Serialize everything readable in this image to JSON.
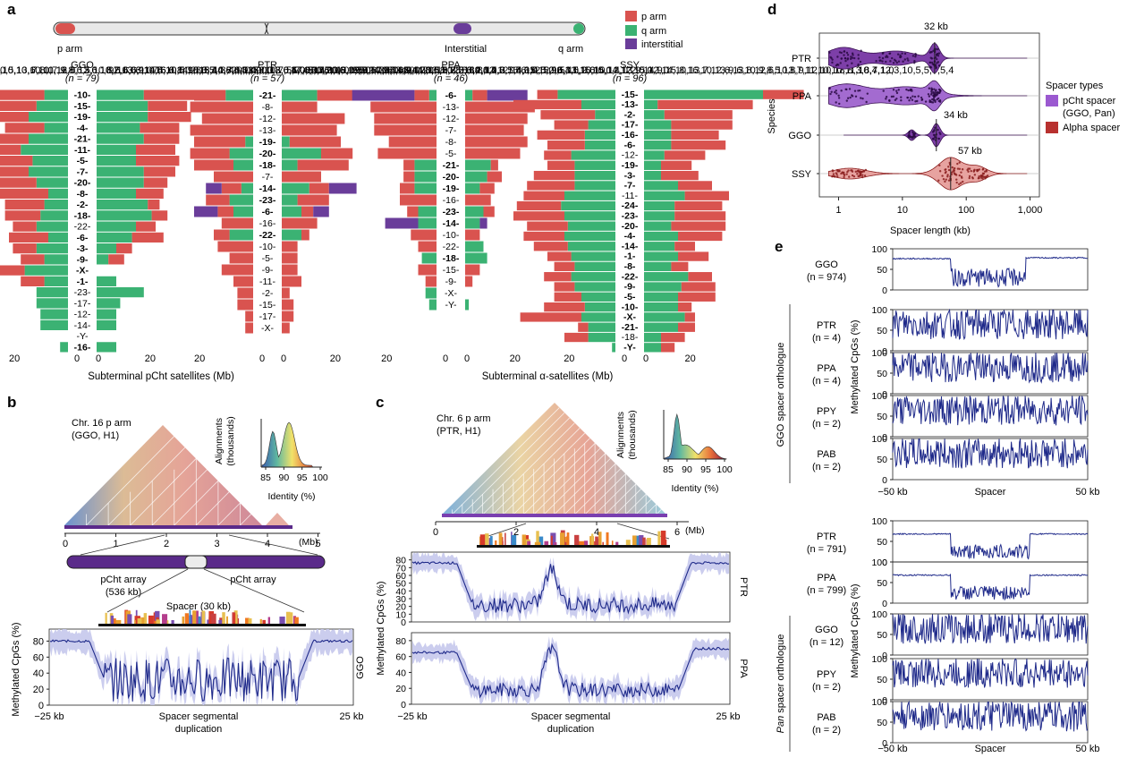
{
  "panels": {
    "a": {
      "letter": "a",
      "chrom_labels": {
        "p": "p arm",
        "interstitial": "Interstitial",
        "q": "q arm"
      },
      "legend": [
        {
          "label": "p arm",
          "color": "#d9534f"
        },
        {
          "label": "q arm",
          "color": "#3bb273"
        },
        {
          "label": "interstitial",
          "color": "#6a3d9a"
        }
      ],
      "x_axis_left": "Subterminal pCht satellites (Mb)",
      "x_axis_right": "Subterminal α-satellites (Mb)",
      "tick_labels": [
        "20",
        "0",
        "20"
      ],
      "species": [
        {
          "name": "GGO",
          "n": "(n = 79)",
          "h1": [
            [
              6,
              14
            ],
            [
              8,
              12
            ],
            [
              10,
              8
            ],
            [
              6,
              10
            ],
            [
              10,
              8
            ],
            [
              12,
              6
            ],
            [
              9,
              9
            ],
            [
              10,
              8
            ],
            [
              8,
              10
            ],
            [
              5,
              13
            ],
            [
              6,
              10
            ],
            [
              7,
              9
            ],
            [
              8,
              6
            ],
            [
              5,
              10
            ],
            [
              8,
              6
            ],
            [
              6,
              6
            ],
            [
              11,
              7
            ],
            [
              6,
              6
            ],
            [
              8,
              0
            ],
            [
              8,
              0
            ],
            [
              7,
              0
            ],
            [
              7,
              0
            ],
            [
              0,
              0
            ],
            [
              2,
              0
            ]
          ],
          "h2": [
            [
              12,
              14
            ],
            [
              13,
              10
            ],
            [
              13,
              11
            ],
            [
              11,
              10
            ],
            [
              12,
              9
            ],
            [
              10,
              10
            ],
            [
              10,
              11
            ],
            [
              12,
              8
            ],
            [
              12,
              6
            ],
            [
              10,
              7
            ],
            [
              13,
              3
            ],
            [
              14,
              4
            ],
            [
              10,
              5
            ],
            [
              9,
              8
            ],
            [
              5,
              4
            ],
            [
              3,
              4
            ],
            [
              0,
              0
            ],
            [
              5,
              0
            ],
            [
              12,
              0
            ],
            [
              6,
              0
            ],
            [
              5,
              0
            ],
            [
              5,
              0
            ],
            [
              0,
              0
            ],
            [
              5,
              0
            ]
          ],
          "chroms": [
            "10",
            "15",
            "19",
            "4",
            "21",
            "11",
            "5",
            "7",
            "20",
            "8",
            "2",
            "18",
            "22",
            "6",
            "3",
            "9",
            "X",
            "1",
            "23",
            "17",
            "12",
            "14",
            "Y",
            "16"
          ],
          "bold": [
            1,
            1,
            1,
            1,
            1,
            1,
            1,
            1,
            1,
            1,
            1,
            1,
            0,
            1,
            1,
            1,
            1,
            1,
            0,
            0,
            0,
            0,
            0,
            1
          ]
        },
        {
          "name": "PTR",
          "n": "(n = 57)",
          "h1": [
            [
              7,
              8
            ],
            [
              0,
              16
            ],
            [
              0,
              13
            ],
            [
              0,
              16
            ],
            [
              2,
              13
            ],
            [
              6,
              10
            ],
            [
              5,
              10
            ],
            [
              0,
              10
            ],
            [
              3,
              5,
              4
            ],
            [
              6,
              6
            ],
            [
              5,
              4,
              6
            ],
            [
              0,
              8
            ],
            [
              6,
              4
            ],
            [
              0,
              9
            ],
            [
              0,
              6
            ],
            [
              0,
              8
            ],
            [
              0,
              5
            ],
            [
              0,
              4
            ],
            [
              0,
              4
            ],
            [
              0,
              2
            ],
            [
              0,
              2
            ]
          ],
          "h2": [
            [
              9,
              10
            ],
            [
              0,
              9
            ],
            [
              0,
              16
            ],
            [
              0,
              14
            ],
            [
              2,
              13
            ],
            [
              10,
              8
            ],
            [
              4,
              13
            ],
            [
              0,
              10
            ],
            [
              7,
              5,
              7
            ],
            [
              4,
              8
            ],
            [
              5,
              3,
              4
            ],
            [
              0,
              9
            ],
            [
              5,
              2
            ],
            [
              0,
              4
            ],
            [
              0,
              4
            ],
            [
              0,
              4
            ],
            [
              0,
              5
            ],
            [
              0,
              2
            ],
            [
              0,
              3
            ],
            [
              0,
              3
            ],
            [
              0,
              2
            ]
          ],
          "chroms": [
            "21",
            "8",
            "12",
            "13",
            "19",
            "20",
            "18",
            "7",
            "14",
            "23",
            "6",
            "16",
            "22",
            "10",
            "5",
            "9",
            "11",
            "2",
            "15",
            "17",
            "X"
          ],
          "bold": [
            1,
            0,
            0,
            0,
            1,
            1,
            1,
            0,
            1,
            1,
            1,
            0,
            1,
            0,
            0,
            0,
            0,
            0,
            0,
            0,
            0
          ]
        },
        {
          "name": "PPA",
          "n": "(n = 46)",
          "h1": [
            [
              2,
              4,
              17
            ],
            [
              0,
              18
            ],
            [
              0,
              17
            ],
            [
              0,
              17
            ],
            [
              0,
              13
            ],
            [
              0,
              16
            ],
            [
              6,
              3
            ],
            [
              6,
              3
            ],
            [
              6,
              4
            ],
            [
              0,
              10
            ],
            [
              5,
              3
            ],
            [
              5,
              0,
              9
            ],
            [
              0,
              7
            ],
            [
              0,
              5
            ],
            [
              4,
              0
            ],
            [
              0,
              5
            ],
            [
              0,
              3
            ],
            [
              3,
              0
            ],
            [
              2,
              0
            ]
          ],
          "h2": [
            [
              2,
              4,
              11
            ],
            [
              0,
              19
            ],
            [
              0,
              17
            ],
            [
              0,
              16
            ],
            [
              0,
              17
            ],
            [
              0,
              15
            ],
            [
              7,
              2
            ],
            [
              6,
              4
            ],
            [
              4,
              4
            ],
            [
              0,
              7
            ],
            [
              5,
              3
            ],
            [
              4,
              0,
              2
            ],
            [
              0,
              4
            ],
            [
              5,
              0
            ],
            [
              6,
              0
            ],
            [
              0,
              4
            ],
            [
              0,
              2
            ],
            [
              0,
              0
            ],
            [
              1,
              0
            ]
          ],
          "chroms": [
            "6",
            "13",
            "12",
            "7",
            "8",
            "5",
            "21",
            "20",
            "19",
            "16",
            "23",
            "14",
            "10",
            "22",
            "18",
            "15",
            "9",
            "X",
            "Y"
          ],
          "bold": [
            1,
            0,
            0,
            0,
            0,
            0,
            1,
            1,
            1,
            0,
            1,
            1,
            0,
            0,
            1,
            0,
            0,
            0,
            0
          ]
        },
        {
          "name": "SSY",
          "n": "(n = 96)",
          "h1": [
            [
              17,
              6
            ],
            [
              10,
              20
            ],
            [
              6,
              16
            ],
            [
              8,
              10
            ],
            [
              9,
              14
            ],
            [
              9,
              11
            ],
            [
              13,
              8
            ],
            [
              12,
              8
            ],
            [
              12,
              12
            ],
            [
              12,
              14
            ],
            [
              15,
              12
            ],
            [
              16,
              13
            ],
            [
              15,
              15
            ],
            [
              14,
              12
            ],
            [
              15,
              12
            ],
            [
              14,
              10
            ],
            [
              13,
              7
            ],
            [
              12,
              6
            ],
            [
              13,
              8
            ],
            [
              12,
              6
            ],
            [
              10,
              8
            ],
            [
              9,
              12
            ],
            [
              10,
              18
            ],
            [
              8,
              3
            ],
            [
              8,
              7
            ],
            [
              1,
              0
            ]
          ],
          "h2": [
            [
              35,
              12
            ],
            [
              4,
              28
            ],
            [
              6,
              20
            ],
            [
              8,
              18
            ],
            [
              8,
              14
            ],
            [
              8,
              16
            ],
            [
              6,
              12
            ],
            [
              5,
              9
            ],
            [
              5,
              11
            ],
            [
              10,
              10
            ],
            [
              12,
              13
            ],
            [
              9,
              14
            ],
            [
              9,
              15
            ],
            [
              8,
              16
            ],
            [
              10,
              13
            ],
            [
              9,
              6
            ],
            [
              10,
              9
            ],
            [
              8,
              5
            ],
            [
              13,
              7
            ],
            [
              11,
              10
            ],
            [
              10,
              11
            ],
            [
              10,
              4
            ],
            [
              12,
              3
            ],
            [
              10,
              5
            ],
            [
              5,
              7
            ],
            [
              5,
              4
            ]
          ],
          "chroms": [
            "15",
            "13",
            "2",
            "17",
            "16",
            "6",
            "12",
            "19",
            "3",
            "7",
            "11",
            "24",
            "23",
            "20",
            "4",
            "14",
            "1",
            "8",
            "22",
            "9",
            "5",
            "10",
            "X",
            "21",
            "18",
            "Y"
          ],
          "bold": [
            1,
            1,
            1,
            1,
            1,
            1,
            0,
            1,
            1,
            1,
            0,
            1,
            1,
            1,
            1,
            1,
            1,
            1,
            1,
            1,
            1,
            1,
            1,
            1,
            0,
            1
          ]
        }
      ]
    },
    "b": {
      "letter": "b",
      "chrom_title": "Chr. 16 p arm",
      "chrom_sub": "(GGO, H1)",
      "hist_ylabel": "Alignments",
      "hist_ylabel2": "(thousands)",
      "hist_xlabel": "Identity (%)",
      "hist_ticks": [
        "85",
        "90",
        "95",
        "100"
      ],
      "mb_ticks": [
        "0",
        "1",
        "2",
        "3",
        "4",
        "5"
      ],
      "mb_unit": "(Mb)",
      "array_left": "pCht array",
      "array_left_sub": "(536 kb)",
      "array_right": "pCht array",
      "spacer_label": "Spacer (30 kb)",
      "ylabel": "Methylated CpGs (%)",
      "yticks": [
        "0",
        "20",
        "40",
        "60",
        "80"
      ],
      "x_left": "−25 kb",
      "x_right": "25 kb",
      "x_title1": "Spacer segmental",
      "x_title2": "duplication",
      "side_label": "GGO"
    },
    "c": {
      "letter": "c",
      "chrom_title": "Chr. 6 p arm",
      "chrom_sub": "(PTR, H1)",
      "hist_ylabel": "Alignments",
      "hist_ylabel2": "(thousands)",
      "hist_xlabel": "Identity (%)",
      "hist_ticks": [
        "85",
        "90",
        "95",
        "100"
      ],
      "mb_ticks": [
        "0",
        "2",
        "4",
        "6"
      ],
      "mb_unit": "(Mb)",
      "ylabel": "Methylated CpGs (%)",
      "yticks": [
        "0",
        "10",
        "20",
        "30",
        "40",
        "50",
        "60",
        "70",
        "80"
      ],
      "yticks2": [
        "0",
        "20",
        "40",
        "60",
        "80"
      ],
      "x_left": "−25 kb",
      "x_right": "25 kb",
      "x_title1": "Spacer segmental",
      "x_title2": "duplication",
      "side_top": "PTR",
      "side_bottom": "PPA"
    },
    "d": {
      "letter": "d",
      "ylabel": "Species",
      "xlabel": "Spacer length (kb)",
      "xticks": [
        "1",
        "10",
        "100",
        "1,000"
      ],
      "rows": [
        "PTR",
        "PPA",
        "GGO",
        "SSY"
      ],
      "annotations": [
        "32 kb",
        "34 kb",
        "57 kb"
      ],
      "legend_title": "Spacer types",
      "legend": [
        {
          "label": "pCht spacer",
          "label2": "(GGO, Pan)",
          "color": "#9b59d0"
        },
        {
          "label": "Alpha spacer",
          "label2": "",
          "color": "#b8312f"
        }
      ]
    },
    "e": {
      "letter": "e",
      "ylabel": "Methylated CpGs (%)",
      "yticks": [
        "0",
        "50",
        "100"
      ],
      "x_left": "−50 kb",
      "x_mid": "Spacer",
      "x_right": "50 kb",
      "group1_label": "GGO spacer orthologue",
      "group2_label_italic": "Pan",
      "group2_label_rest": " spacer orthologue",
      "top_rows": [
        {
          "name": "GGO",
          "n": "(n = 974)"
        },
        {
          "name": "PTR",
          "n": "(n = 4)"
        },
        {
          "name": "PPA",
          "n": "(n = 4)"
        },
        {
          "name": "PPY",
          "n": "(n = 2)"
        },
        {
          "name": "PAB",
          "n": "(n = 2)"
        }
      ],
      "bottom_rows": [
        {
          "name": "PTR",
          "n": "(n = 791)"
        },
        {
          "name": "PPA",
          "n": "(n = 799)"
        },
        {
          "name": "GGO",
          "n": "(n = 12)"
        },
        {
          "name": "PPY",
          "n": "(n = 2)"
        },
        {
          "name": "PAB",
          "n": "(n = 2)"
        }
      ]
    }
  },
  "colors": {
    "p_arm": "#d9534f",
    "q_arm": "#3bb273",
    "interstitial": "#6a3d9a",
    "methyl_line": "#1f2a8a",
    "methyl_band": "#c5c8ec",
    "pcht_fill": "#6a2a8c",
    "pcht_light": "#b58ad6",
    "alpha_fill": "#e7a3a0",
    "alpha_dark": "#8b1e1e",
    "array_purple": "#5a2a8a"
  }
}
